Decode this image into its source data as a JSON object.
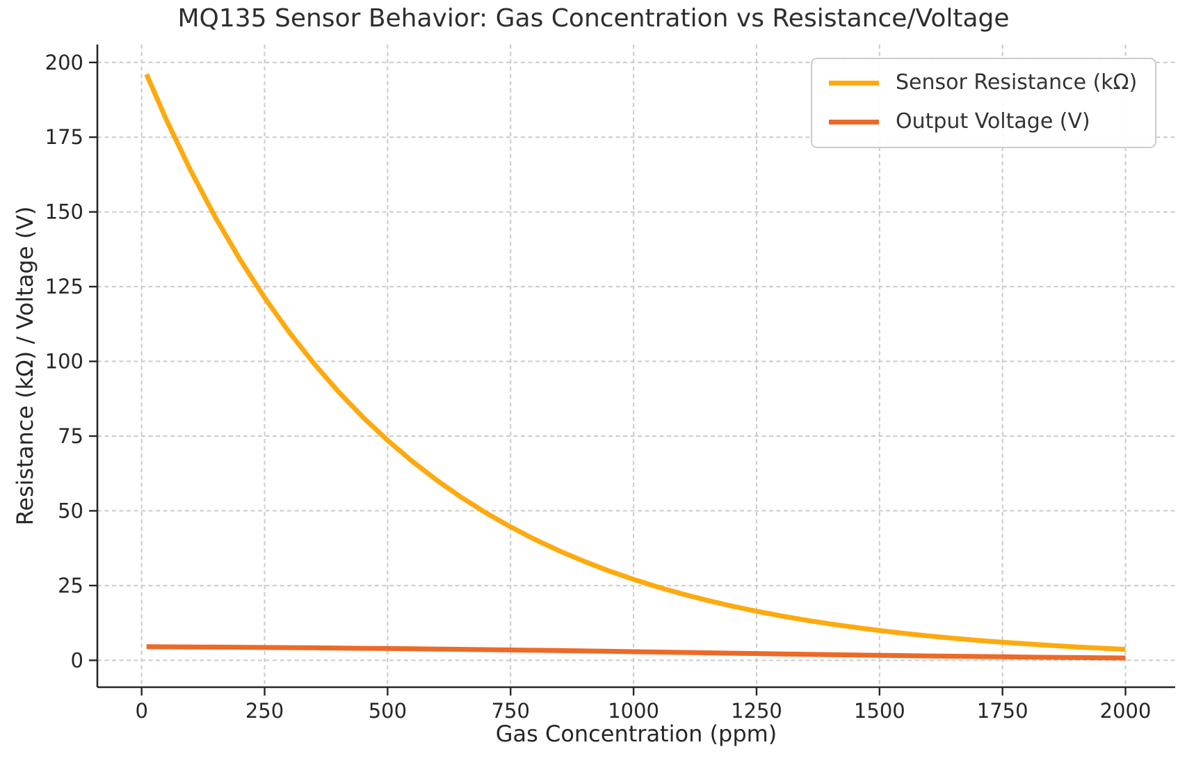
{
  "figure": {
    "background": "#ffffff",
    "text_color": "#262626",
    "spine_color": "#262626"
  },
  "chart_data": {
    "type": "line",
    "title": "MQ135 Sensor Behavior: Gas Concentration vs Resistance/Voltage",
    "xlabel": "Gas Concentration (ppm)",
    "ylabel": "Resistance (kΩ) / Voltage (V)",
    "xlim": [
      -90,
      2101
    ],
    "ylim": [
      -9,
      206
    ],
    "x_ticks": [
      0,
      250,
      500,
      750,
      1000,
      1250,
      1500,
      1750,
      2000
    ],
    "y_ticks": [
      0,
      25,
      50,
      75,
      100,
      125,
      150,
      175,
      200
    ],
    "grid": {
      "visible": true,
      "style": "dashed",
      "color": "#cbcbcb"
    },
    "legend": {
      "position": "upper right",
      "border_color": "#cccccc"
    },
    "x": [
      10,
      50,
      100,
      150,
      200,
      250,
      300,
      350,
      400,
      450,
      500,
      550,
      600,
      650,
      700,
      750,
      800,
      850,
      900,
      950,
      1000,
      1050,
      1100,
      1150,
      1200,
      1250,
      1300,
      1350,
      1400,
      1450,
      1500,
      1550,
      1600,
      1650,
      1700,
      1750,
      1800,
      1850,
      1900,
      1950,
      2000
    ],
    "series": [
      {
        "name": "Sensor Resistance (kΩ)",
        "color": "#FDAA0E",
        "values": [
          196.04,
          180.97,
          163.75,
          148.16,
          134.06,
          121.31,
          109.76,
          99.32,
          89.87,
          81.31,
          73.58,
          66.57,
          60.24,
          54.5,
          49.32,
          44.63,
          40.38,
          36.54,
          33.06,
          29.91,
          27.07,
          24.49,
          22.16,
          20.05,
          18.14,
          16.42,
          14.85,
          13.44,
          12.16,
          11.0,
          9.96,
          9.01,
          8.15,
          7.38,
          6.67,
          6.04,
          5.47,
          4.95,
          4.48,
          4.05,
          3.66
        ]
      },
      {
        "name": "Output Voltage (V)",
        "color": "#EC6A28",
        "values": [
          4.537,
          4.502,
          4.456,
          4.405,
          4.351,
          4.292,
          4.229,
          4.162,
          4.09,
          4.013,
          3.931,
          3.845,
          3.754,
          3.658,
          3.557,
          3.453,
          3.344,
          3.231,
          3.115,
          2.996,
          2.875,
          2.752,
          2.628,
          2.503,
          2.378,
          2.254,
          2.131,
          2.01,
          1.891,
          1.774,
          1.662,
          1.553,
          1.448,
          1.348,
          1.251,
          1.16,
          1.074,
          0.992,
          0.915,
          0.842,
          0.774
        ]
      }
    ]
  }
}
